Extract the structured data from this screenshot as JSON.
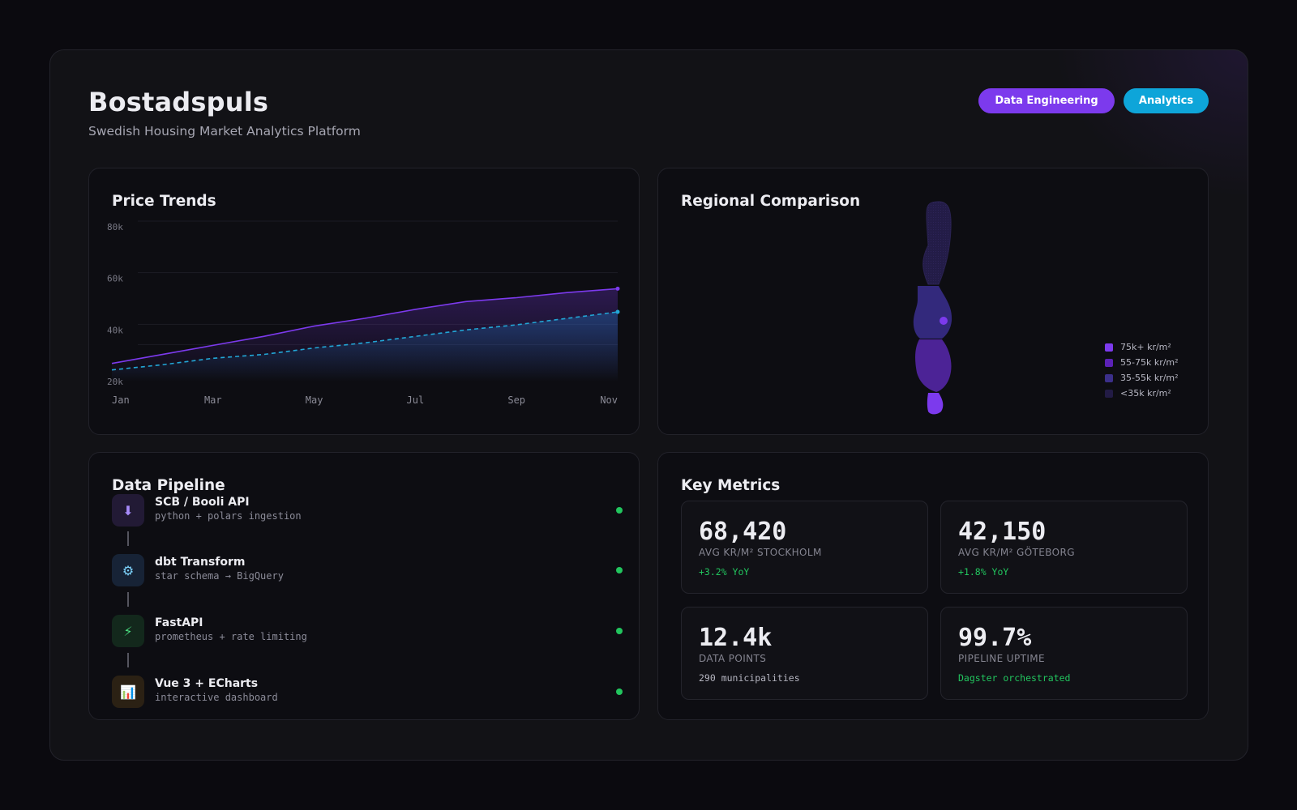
{
  "header": {
    "title": "Bostadspuls",
    "subtitle": "Swedish Housing Market Analytics Platform",
    "badges": [
      {
        "label": "Data Engineering",
        "color": "#7c3aed"
      },
      {
        "label": "Analytics",
        "color": "#0ea5d9"
      }
    ]
  },
  "trends": {
    "title": "Price Trends",
    "chart_data": {
      "type": "area",
      "title": "Price Trends",
      "x": [
        "Jan",
        "Feb",
        "Mar",
        "Apr",
        "May",
        "Jun",
        "Jul",
        "Aug",
        "Sep",
        "Oct",
        "Nov"
      ],
      "tick_labels_x": [
        "Jan",
        "Mar",
        "May",
        "Jul",
        "Sep",
        "Nov"
      ],
      "y_ticks": [
        "80k",
        "60k",
        "40k",
        "20k"
      ],
      "ylim": [
        20000,
        80000
      ],
      "grid": true,
      "series": [
        {
          "values": [
            27000,
            30500,
            34000,
            37500,
            41500,
            44500,
            48000,
            51000,
            52500,
            54500,
            56000
          ],
          "color": "#7c3aed",
          "style": "solid"
        },
        {
          "values": [
            24500,
            26500,
            29000,
            30500,
            33000,
            35000,
            37500,
            40000,
            42000,
            44500,
            47000
          ],
          "color": "#22a6d6",
          "style": "dashed"
        }
      ]
    }
  },
  "regional": {
    "title": "Regional Comparison",
    "legend": [
      {
        "label": "75k+ kr/m²",
        "color": "#7c3aed"
      },
      {
        "label": "55-75k kr/m²",
        "color": "#5b21b6"
      },
      {
        "label": "35-55k kr/m²",
        "color": "#3b2f8a"
      },
      {
        "label": "<35k kr/m²",
        "color": "#221b45"
      }
    ]
  },
  "pipeline": {
    "title": "Data Pipeline",
    "steps": [
      {
        "name": "SCB / Booli API",
        "desc": "python + polars ingestion",
        "icon": "⬇",
        "icon_name": "download-icon",
        "icon_bg": "#221a35",
        "icon_color": "#a78bfa",
        "status_color": "#22c55e"
      },
      {
        "name": "dbt Transform",
        "desc": "star schema → BigQuery",
        "icon": "⚙",
        "icon_name": "gear-icon",
        "icon_bg": "#172336",
        "icon_color": "#7dd3fc",
        "status_color": "#22c55e"
      },
      {
        "name": "FastAPI",
        "desc": "prometheus + rate limiting",
        "icon": "⚡",
        "icon_name": "lightning-icon",
        "icon_bg": "#13281c",
        "icon_color": "#4ade80",
        "status_color": "#22c55e"
      },
      {
        "name": "Vue 3 + ECharts",
        "desc": "interactive dashboard",
        "icon": "📊",
        "icon_name": "bar-chart-icon",
        "icon_bg": "#2b2114",
        "icon_color": "#f59e0b",
        "status_color": "#22c55e"
      }
    ]
  },
  "metrics": {
    "title": "Key Metrics",
    "items": [
      {
        "value": "68,420",
        "label": "AVG KR/M² STOCKHOLM",
        "sub": "+3.2% YoY",
        "sub_color": "#22c55e"
      },
      {
        "value": "42,150",
        "label": "AVG KR/M² GÖTEBORG",
        "sub": "+1.8% YoY",
        "sub_color": "#22c55e"
      },
      {
        "value": "12.4k",
        "label": "DATA POINTS",
        "sub": "290 municipalities",
        "sub_color": "#b5b5c0"
      },
      {
        "value": "99.7%",
        "label": "PIPELINE UPTIME",
        "sub": "Dagster orchestrated",
        "sub_color": "#22c55e"
      }
    ]
  }
}
